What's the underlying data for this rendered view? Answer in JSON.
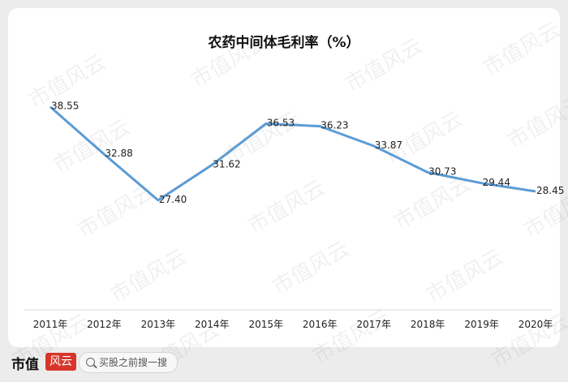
{
  "chart_data": {
    "type": "line",
    "title": "农药中间体毛利率（%）",
    "categories": [
      "2011年",
      "2012年",
      "2013年",
      "2014年",
      "2015年",
      "2016年",
      "2017年",
      "2018年",
      "2019年",
      "2020年"
    ],
    "series": [
      {
        "values": [
          38.55,
          32.88,
          27.4,
          31.62,
          36.53,
          36.23,
          33.87,
          30.73,
          29.44,
          28.45
        ]
      }
    ],
    "data_labels": [
      "38.55",
      "32.88",
      "27.40",
      "31.62",
      "36.53",
      "36.23",
      "33.87",
      "30.73",
      "29.44",
      "28.45"
    ],
    "ylim": [
      15,
      45
    ],
    "grid": false,
    "line_color": "#5b9bd5"
  },
  "watermark": "市值风云",
  "footer": {
    "logo_text": "市值",
    "logo_badge": "风云",
    "search_placeholder": "买股之前搜一搜"
  }
}
